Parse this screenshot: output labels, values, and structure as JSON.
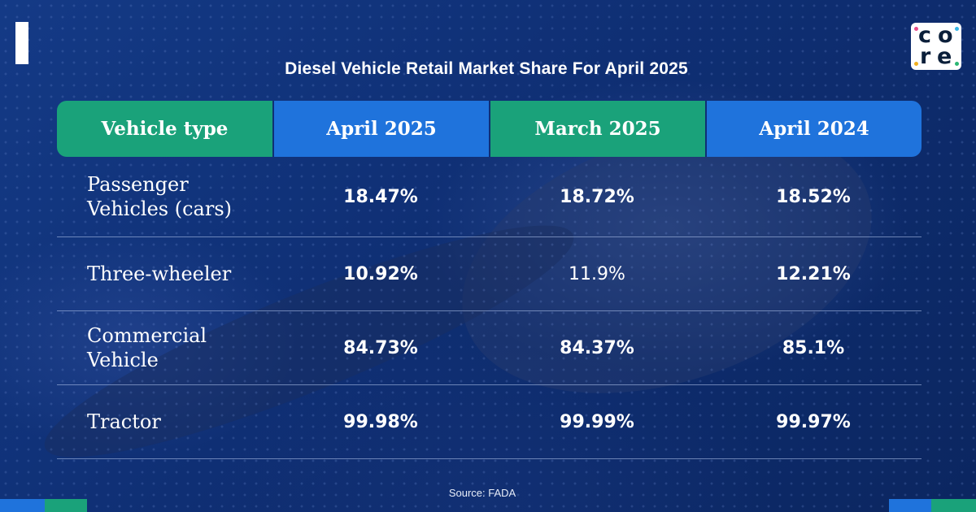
{
  "logo": {
    "letters": [
      "c",
      "o",
      "r",
      "e"
    ]
  },
  "colors": {
    "background": "#0f2f74",
    "green": "#1aa27a",
    "blue": "#1f73dc"
  },
  "chart_data": {
    "type": "table",
    "title": "Diesel Vehicle Retail Market Share For April 2025",
    "columns": [
      "Vehicle type",
      "April 2025",
      "March 2025",
      "April 2024"
    ],
    "rows": [
      [
        "Passenger Vehicles (cars)",
        "18.47%",
        "18.72%",
        "18.52%"
      ],
      [
        "Three-wheeler",
        "10.92%",
        "11.9%",
        "12.21%"
      ],
      [
        "Commercial Vehicle",
        "84.73%",
        "84.37%",
        "85.1%"
      ],
      [
        "Tractor",
        "99.98%",
        "99.99%",
        "99.97%"
      ]
    ],
    "source": "Source: FADA"
  }
}
